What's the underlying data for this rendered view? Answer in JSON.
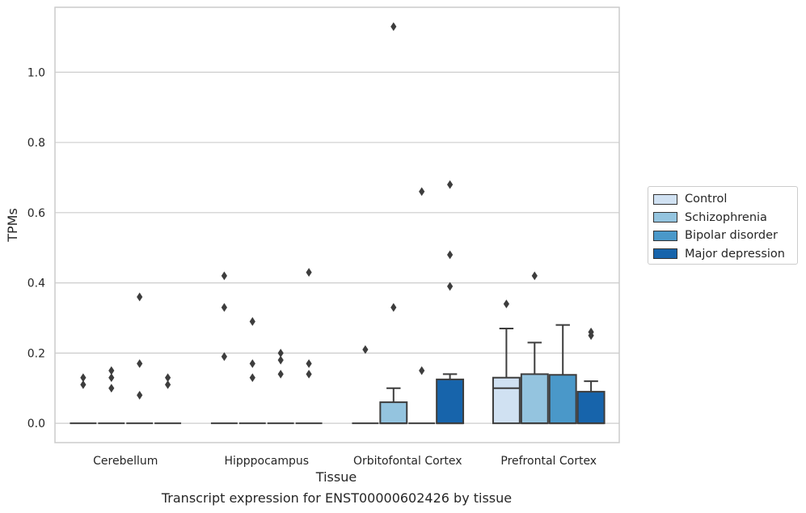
{
  "chart_data": {
    "type": "box",
    "xlabel": "Tissue",
    "ylabel": "TPMs",
    "caption": "Transcript expression for ENST00000602426 by tissue",
    "ylim": [
      -0.055,
      1.185
    ],
    "yticks": [
      0.0,
      0.2,
      0.4,
      0.6,
      0.8,
      1.0
    ],
    "ytick_labels": [
      "0.0",
      "0.2",
      "0.4",
      "0.6",
      "0.8",
      "1.0"
    ],
    "grid": true,
    "legend_position": "right",
    "categories": [
      "Cerebellum",
      "Hipppocampus",
      "Orbitofontal Cortex",
      "Prefrontal Cortex"
    ],
    "series": [
      {
        "name": "Control",
        "color": "#d0e1f2",
        "boxes": [
          {
            "q1": 0,
            "median": 0,
            "q3": 0,
            "whislo": 0,
            "whishi": 0,
            "fliers": [
              0.11,
              0.13
            ]
          },
          {
            "q1": 0,
            "median": 0,
            "q3": 0,
            "whislo": 0,
            "whishi": 0,
            "fliers": [
              0.19,
              0.33,
              0.42
            ]
          },
          {
            "q1": 0,
            "median": 0,
            "q3": 0,
            "whislo": 0,
            "whishi": 0,
            "fliers": [
              0.21
            ]
          },
          {
            "q1": 0,
            "median": 0.1,
            "q3": 0.13,
            "whislo": 0,
            "whishi": 0.27,
            "fliers": [
              0.34
            ]
          }
        ]
      },
      {
        "name": "Schizophrenia",
        "color": "#94c4df",
        "boxes": [
          {
            "q1": 0,
            "median": 0,
            "q3": 0,
            "whislo": 0,
            "whishi": 0,
            "fliers": [
              0.1,
              0.13,
              0.15
            ]
          },
          {
            "q1": 0,
            "median": 0,
            "q3": 0,
            "whislo": 0,
            "whishi": 0,
            "fliers": [
              0.13,
              0.17,
              0.29
            ]
          },
          {
            "q1": 0,
            "median": 0,
            "q3": 0.06,
            "whislo": 0,
            "whishi": 0.1,
            "fliers": [
              0.33,
              1.13
            ]
          },
          {
            "q1": 0,
            "median": 0,
            "q3": 0.14,
            "whislo": 0,
            "whishi": 0.23,
            "fliers": [
              0.42
            ]
          }
        ]
      },
      {
        "name": "Bipolar disorder",
        "color": "#4a98c9",
        "boxes": [
          {
            "q1": 0,
            "median": 0,
            "q3": 0,
            "whislo": 0,
            "whishi": 0,
            "fliers": [
              0.08,
              0.17,
              0.36
            ]
          },
          {
            "q1": 0,
            "median": 0,
            "q3": 0,
            "whislo": 0,
            "whishi": 0,
            "fliers": [
              0.14,
              0.18,
              0.2
            ]
          },
          {
            "q1": 0,
            "median": 0,
            "q3": 0,
            "whislo": 0,
            "whishi": 0,
            "fliers": [
              0.15,
              0.66
            ]
          },
          {
            "q1": 0,
            "median": 0,
            "q3": 0.138,
            "whislo": 0,
            "whishi": 0.28,
            "fliers": []
          }
        ]
      },
      {
        "name": "Major depression",
        "color": "#1764ab",
        "boxes": [
          {
            "q1": 0,
            "median": 0,
            "q3": 0,
            "whislo": 0,
            "whishi": 0,
            "fliers": [
              0.11,
              0.13
            ]
          },
          {
            "q1": 0,
            "median": 0,
            "q3": 0,
            "whislo": 0,
            "whishi": 0,
            "fliers": [
              0.14,
              0.17,
              0.43
            ]
          },
          {
            "q1": 0,
            "median": 0,
            "q3": 0.125,
            "whislo": 0,
            "whishi": 0.14,
            "fliers": [
              0.39,
              0.48,
              0.68
            ]
          },
          {
            "q1": 0,
            "median": 0,
            "q3": 0.09,
            "whislo": 0,
            "whishi": 0.12,
            "fliers": [
              0.25,
              0.26
            ]
          }
        ]
      }
    ]
  }
}
